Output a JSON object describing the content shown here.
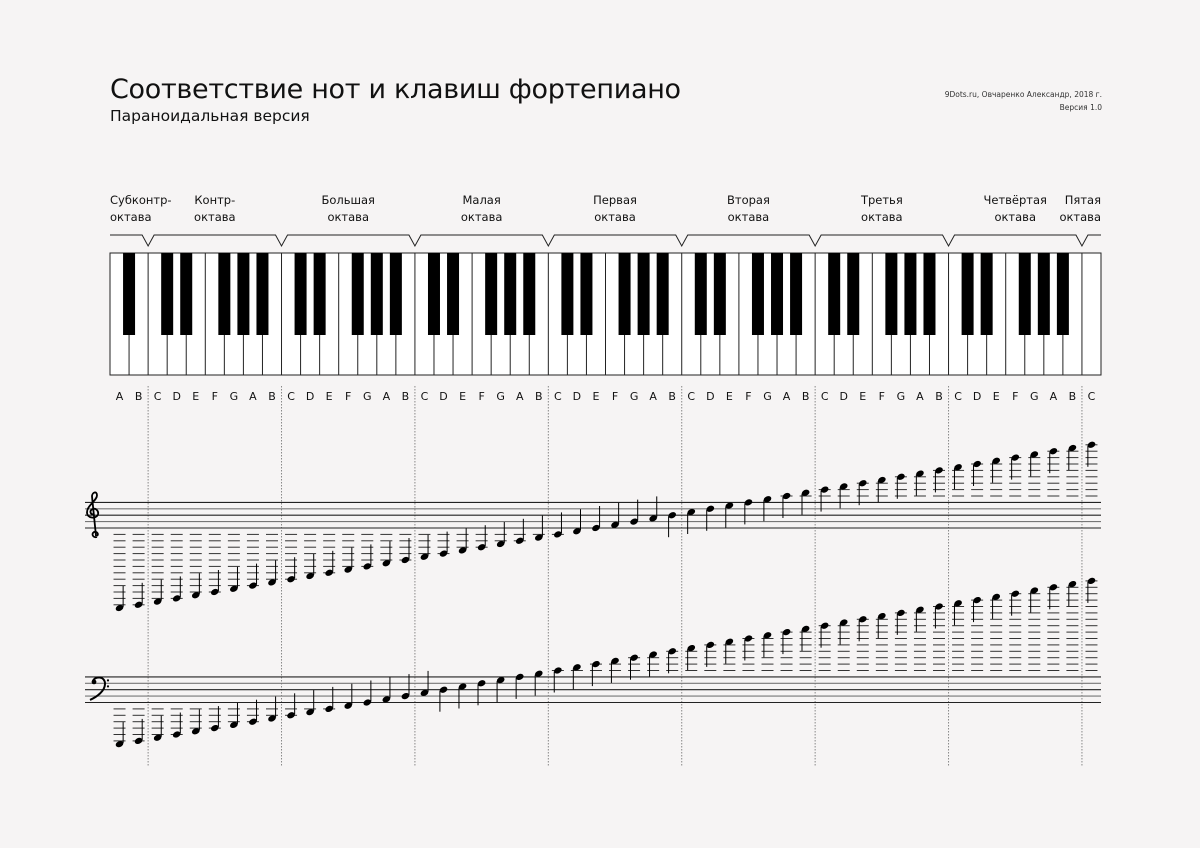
{
  "header": {
    "title": "Соответствие нот и клавиш фортепиано",
    "subtitle": "Параноидальная версия",
    "credit": "9Dots.ru, Овчаренко Александр, 2018 г.",
    "version": "Версия 1.0"
  },
  "octaves": [
    {
      "line1": "Субконтр-",
      "line2": "октава"
    },
    {
      "line1": "Контр-",
      "line2": "октава"
    },
    {
      "line1": "Большая",
      "line2": "октава"
    },
    {
      "line1": "Малая",
      "line2": "октава"
    },
    {
      "line1": "Первая",
      "line2": "октава"
    },
    {
      "line1": "Вторая",
      "line2": "октава"
    },
    {
      "line1": "Третья",
      "line2": "октава"
    },
    {
      "line1": "Четвёртая",
      "line2": "октава"
    },
    {
      "line1": "Пятая",
      "line2": "октава"
    }
  ],
  "keyboard": {
    "white_keys": 52,
    "first_note": "A0",
    "last_note": "C8"
  },
  "note_letters": [
    "A",
    "B",
    "C",
    "D",
    "E",
    "F",
    "G",
    "A",
    "B",
    "C",
    "D",
    "E",
    "F",
    "G",
    "A",
    "B",
    "C",
    "D",
    "E",
    "F",
    "G",
    "A",
    "B",
    "C",
    "D",
    "E",
    "F",
    "G",
    "A",
    "B",
    "C",
    "D",
    "E",
    "F",
    "G",
    "A",
    "B",
    "C",
    "D",
    "E",
    "F",
    "G",
    "A",
    "B",
    "C",
    "D",
    "E",
    "F",
    "G",
    "A",
    "B",
    "C"
  ],
  "staves": [
    {
      "clef": "treble-clef",
      "bottom_line_note": "E4"
    },
    {
      "clef": "bass-clef",
      "bottom_line_note": "G2"
    }
  ]
}
